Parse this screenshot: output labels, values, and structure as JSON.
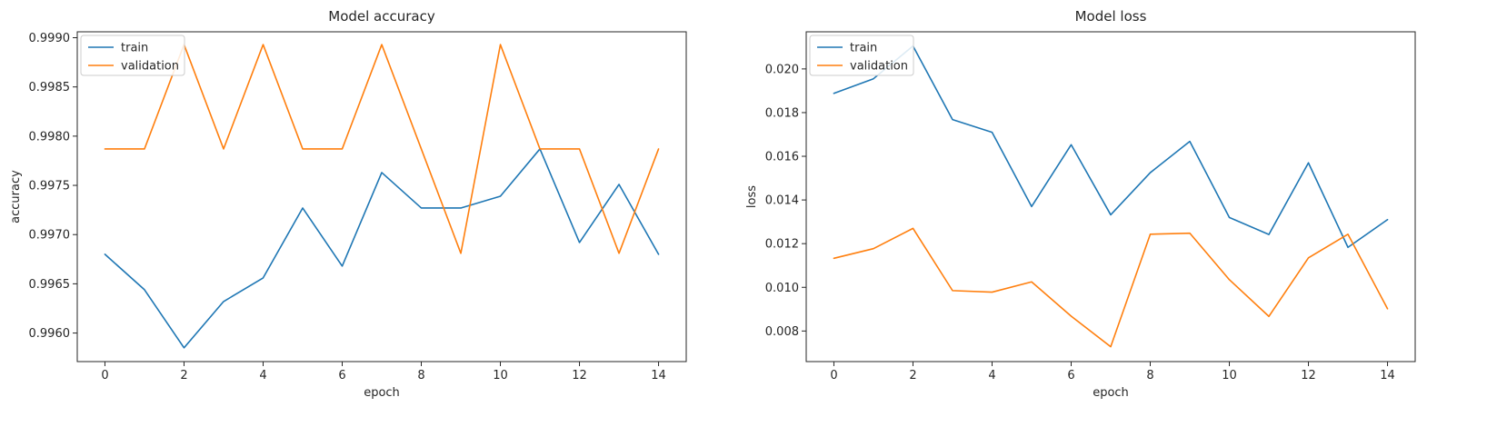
{
  "colors": {
    "train": "#1f77b4",
    "validation": "#ff7f0e"
  },
  "chart_data": [
    {
      "type": "line",
      "title": "Model accuracy",
      "xlabel": "epoch",
      "ylabel": "accuracy",
      "xlim": [
        -0.7,
        14.7
      ],
      "ylim": [
        0.99571,
        0.99906
      ],
      "xticks": [
        0,
        2,
        4,
        6,
        8,
        10,
        12,
        14
      ],
      "yticks": [
        0.996,
        0.9965,
        0.997,
        0.9975,
        0.998,
        0.9985,
        0.999
      ],
      "yticks_labels": [
        "0.9960",
        "0.9965",
        "0.9970",
        "0.9975",
        "0.9980",
        "0.9985",
        "0.9990"
      ],
      "legend": "upper-left",
      "x": [
        0,
        1,
        2,
        3,
        4,
        5,
        6,
        7,
        8,
        9,
        10,
        11,
        12,
        13,
        14
      ],
      "series": [
        {
          "name": "train",
          "values": [
            0.9968,
            0.99644,
            0.99585,
            0.99632,
            0.99656,
            0.99727,
            0.99668,
            0.99763,
            0.99727,
            0.99727,
            0.99739,
            0.99787,
            0.99692,
            0.99751,
            0.9968
          ]
        },
        {
          "name": "validation",
          "values": [
            0.99787,
            0.99787,
            0.99893,
            0.99787,
            0.99893,
            0.99787,
            0.99787,
            0.99893,
            0.99787,
            0.99681,
            0.99893,
            0.99787,
            0.99787,
            0.99681,
            0.99787
          ]
        }
      ]
    },
    {
      "type": "line",
      "title": "Model loss",
      "xlabel": "epoch",
      "ylabel": "loss",
      "xlim": [
        -0.7,
        14.7
      ],
      "ylim": [
        0.0066,
        0.0217
      ],
      "xticks": [
        0,
        2,
        4,
        6,
        8,
        10,
        12,
        14
      ],
      "yticks": [
        0.008,
        0.01,
        0.012,
        0.014,
        0.016,
        0.018,
        0.02
      ],
      "yticks_labels": [
        "0.008",
        "0.010",
        "0.012",
        "0.014",
        "0.016",
        "0.018",
        "0.020"
      ],
      "legend": "upper-left",
      "x": [
        0,
        1,
        2,
        3,
        4,
        5,
        6,
        7,
        8,
        9,
        10,
        11,
        12,
        13,
        14
      ],
      "series": [
        {
          "name": "train",
          "values": [
            0.01888,
            0.01955,
            0.02105,
            0.01768,
            0.0171,
            0.0137,
            0.01653,
            0.01332,
            0.01525,
            0.01668,
            0.0132,
            0.01242,
            0.0157,
            0.01183,
            0.0131
          ]
        },
        {
          "name": "validation",
          "values": [
            0.01133,
            0.01177,
            0.0127,
            0.00985,
            0.00978,
            0.01025,
            0.00868,
            0.00728,
            0.01243,
            0.01248,
            0.01035,
            0.00867,
            0.01135,
            0.01243,
            0.00902
          ]
        }
      ]
    }
  ]
}
